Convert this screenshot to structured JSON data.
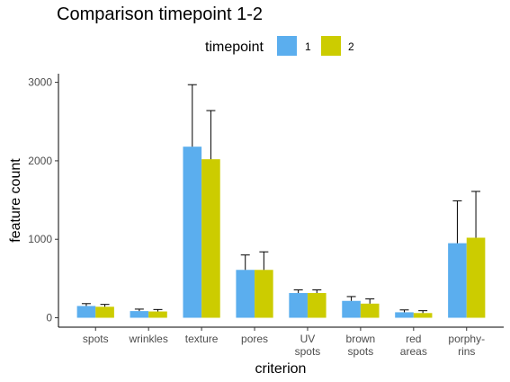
{
  "chart_data": {
    "type": "bar",
    "title": "Comparison timepoint 1-2",
    "xlabel": "criterion",
    "ylabel": "feature count",
    "legend": {
      "title": "timepoint",
      "position": "top",
      "entries": [
        "1",
        "2"
      ]
    },
    "categories": [
      [
        "spots"
      ],
      [
        "wrinkles"
      ],
      [
        "texture"
      ],
      [
        "pores"
      ],
      [
        "UV",
        "spots"
      ],
      [
        "brown",
        "spots"
      ],
      [
        "red",
        "areas"
      ],
      [
        "porphy-",
        "rins"
      ]
    ],
    "series": [
      {
        "name": "1",
        "color": "#5baeee",
        "values": [
          150,
          85,
          2180,
          610,
          315,
          215,
          70,
          950
        ],
        "error_upper": [
          180,
          110,
          2970,
          800,
          355,
          270,
          100,
          1490
        ]
      },
      {
        "name": "2",
        "color": "#cccc00",
        "values": [
          140,
          80,
          2020,
          610,
          315,
          180,
          60,
          1020
        ],
        "error_upper": [
          170,
          105,
          2640,
          840,
          355,
          240,
          90,
          1610
        ]
      }
    ],
    "yticks": [
      0,
      1000,
      2000,
      3000
    ],
    "ylim": [
      -120,
      3110
    ],
    "grid": false
  }
}
